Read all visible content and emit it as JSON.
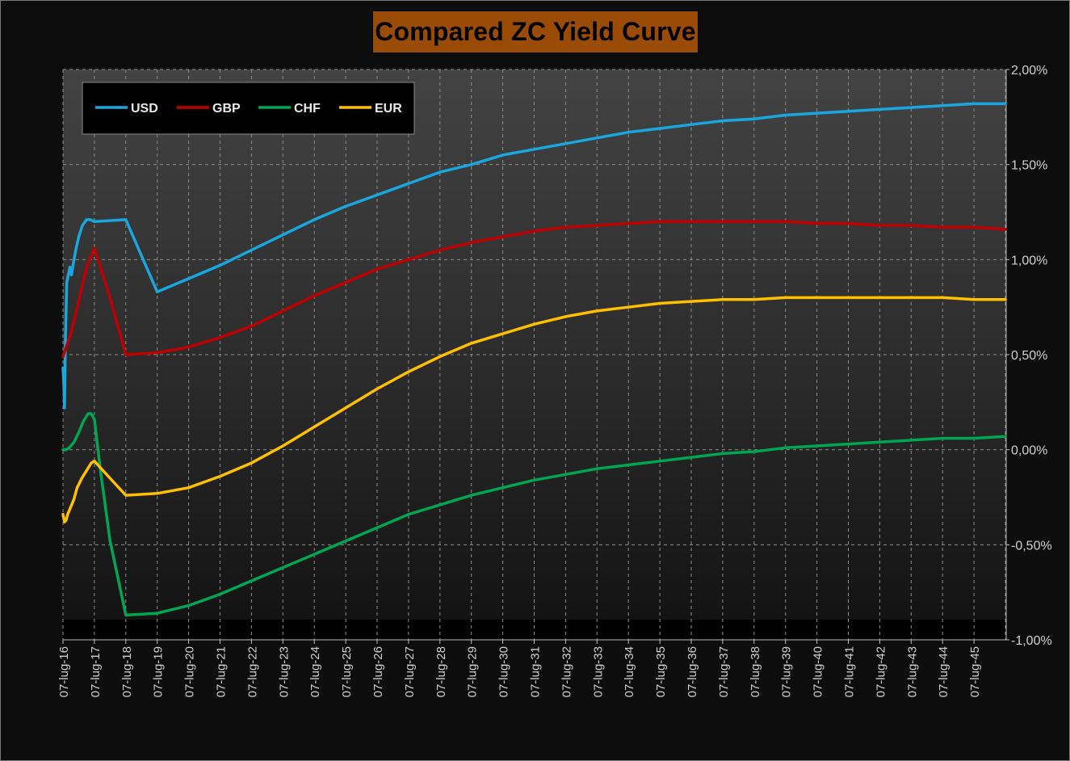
{
  "chart_data": {
    "type": "line",
    "title": "Compared ZC Yield Curve",
    "xlabel": "",
    "ylabel": "",
    "ylim": [
      -0.01,
      0.02
    ],
    "y_ticks": [
      "2,00%",
      "1,50%",
      "1,00%",
      "0,50%",
      "0,00%",
      "-0,50%",
      "-1,00%"
    ],
    "y_tick_values": [
      0.02,
      0.015,
      0.01,
      0.005,
      0.0,
      -0.005,
      -0.01
    ],
    "x_ticks": [
      "07-lug-16",
      "07-lug-17",
      "07-lug-18",
      "07-lug-19",
      "07-lug-20",
      "07-lug-21",
      "07-lug-22",
      "07-lug-23",
      "07-lug-24",
      "07-lug-25",
      "07-lug-26",
      "07-lug-27",
      "07-lug-28",
      "07-lug-29",
      "07-lug-30",
      "07-lug-31",
      "07-lug-32",
      "07-lug-33",
      "07-lug-34",
      "07-lug-35",
      "07-lug-36",
      "07-lug-37",
      "07-lug-38",
      "07-lug-39",
      "07-lug-40",
      "07-lug-41",
      "07-lug-42",
      "07-lug-43",
      "07-lug-44",
      "07-lug-45"
    ],
    "x_unit": "years from 07-lug-16",
    "xlim": [
      0,
      30
    ],
    "grid": true,
    "legend_position": "top-left",
    "series": [
      {
        "name": "USD",
        "color": "#1aa7e0",
        "points": [
          [
            0.0,
            0.0043
          ],
          [
            0.02,
            0.0037
          ],
          [
            0.05,
            0.0022
          ],
          [
            0.08,
            0.006
          ],
          [
            0.12,
            0.0088
          ],
          [
            0.17,
            0.0092
          ],
          [
            0.22,
            0.0096
          ],
          [
            0.27,
            0.0092
          ],
          [
            0.33,
            0.0098
          ],
          [
            0.42,
            0.0106
          ],
          [
            0.5,
            0.0112
          ],
          [
            0.62,
            0.0118
          ],
          [
            0.75,
            0.0121
          ],
          [
            0.87,
            0.0121
          ],
          [
            1.0,
            0.012
          ],
          [
            2.0,
            0.0121
          ],
          [
            3.0,
            0.0083
          ],
          [
            4.0,
            0.009
          ],
          [
            5.0,
            0.0097
          ],
          [
            6.0,
            0.0105
          ],
          [
            7.0,
            0.0113
          ],
          [
            8.0,
            0.0121
          ],
          [
            9.0,
            0.0128
          ],
          [
            10.0,
            0.0134
          ],
          [
            11.0,
            0.014
          ],
          [
            12.0,
            0.0146
          ],
          [
            13.0,
            0.015
          ],
          [
            14.0,
            0.0155
          ],
          [
            15.0,
            0.0158
          ],
          [
            16.0,
            0.0161
          ],
          [
            17.0,
            0.0164
          ],
          [
            18.0,
            0.0167
          ],
          [
            19.0,
            0.0169
          ],
          [
            20.0,
            0.0171
          ],
          [
            21.0,
            0.0173
          ],
          [
            22.0,
            0.0174
          ],
          [
            23.0,
            0.0176
          ],
          [
            24.0,
            0.0177
          ],
          [
            25.0,
            0.0178
          ],
          [
            26.0,
            0.0179
          ],
          [
            27.0,
            0.018
          ],
          [
            28.0,
            0.0181
          ],
          [
            29.0,
            0.0182
          ],
          [
            30.0,
            0.0182
          ]
        ]
      },
      {
        "name": "GBP",
        "color": "#c00000",
        "points": [
          [
            0.0,
            0.0049
          ],
          [
            0.25,
            0.0061
          ],
          [
            0.5,
            0.0078
          ],
          [
            0.75,
            0.0096
          ],
          [
            1.0,
            0.0106
          ],
          [
            1.5,
            0.008
          ],
          [
            2.0,
            0.005
          ],
          [
            3.0,
            0.0051
          ],
          [
            4.0,
            0.0054
          ],
          [
            5.0,
            0.0059
          ],
          [
            6.0,
            0.0065
          ],
          [
            7.0,
            0.0073
          ],
          [
            8.0,
            0.0081
          ],
          [
            9.0,
            0.0088
          ],
          [
            10.0,
            0.0095
          ],
          [
            11.0,
            0.01
          ],
          [
            12.0,
            0.0105
          ],
          [
            13.0,
            0.0109
          ],
          [
            14.0,
            0.0112
          ],
          [
            15.0,
            0.0115
          ],
          [
            16.0,
            0.0117
          ],
          [
            17.0,
            0.0118
          ],
          [
            18.0,
            0.0119
          ],
          [
            19.0,
            0.012
          ],
          [
            20.0,
            0.012
          ],
          [
            21.0,
            0.012
          ],
          [
            22.0,
            0.012
          ],
          [
            23.0,
            0.012
          ],
          [
            24.0,
            0.0119
          ],
          [
            25.0,
            0.0119
          ],
          [
            26.0,
            0.0118
          ],
          [
            27.0,
            0.0118
          ],
          [
            28.0,
            0.0117
          ],
          [
            29.0,
            0.0117
          ],
          [
            30.0,
            0.0116
          ]
        ]
      },
      {
        "name": "CHF",
        "color": "#00a651",
        "points": [
          [
            0.0,
            0.0
          ],
          [
            0.1,
            0.0
          ],
          [
            0.2,
            0.0001
          ],
          [
            0.35,
            0.0004
          ],
          [
            0.5,
            0.0009
          ],
          [
            0.65,
            0.0015
          ],
          [
            0.8,
            0.0019
          ],
          [
            0.9,
            0.0019
          ],
          [
            1.0,
            0.0016
          ],
          [
            1.2,
            -0.0012
          ],
          [
            1.5,
            -0.0048
          ],
          [
            2.0,
            -0.0087
          ],
          [
            3.0,
            -0.0086
          ],
          [
            4.0,
            -0.0082
          ],
          [
            5.0,
            -0.0076
          ],
          [
            6.0,
            -0.0069
          ],
          [
            7.0,
            -0.0062
          ],
          [
            8.0,
            -0.0055
          ],
          [
            9.0,
            -0.0048
          ],
          [
            10.0,
            -0.0041
          ],
          [
            11.0,
            -0.0034
          ],
          [
            12.0,
            -0.0029
          ],
          [
            13.0,
            -0.0024
          ],
          [
            14.0,
            -0.002
          ],
          [
            15.0,
            -0.0016
          ],
          [
            16.0,
            -0.0013
          ],
          [
            17.0,
            -0.001
          ],
          [
            18.0,
            -0.0008
          ],
          [
            19.0,
            -0.0006
          ],
          [
            20.0,
            -0.0004
          ],
          [
            21.0,
            -0.0002
          ],
          [
            22.0,
            -0.0001
          ],
          [
            23.0,
            0.0001
          ],
          [
            24.0,
            0.0002
          ],
          [
            25.0,
            0.0003
          ],
          [
            26.0,
            0.0004
          ],
          [
            27.0,
            0.0005
          ],
          [
            28.0,
            0.0006
          ],
          [
            29.0,
            0.0006
          ],
          [
            30.0,
            0.0007
          ]
        ]
      },
      {
        "name": "EUR",
        "color": "#ffc000",
        "points": [
          [
            0.0,
            -0.0034
          ],
          [
            0.05,
            -0.0038
          ],
          [
            0.1,
            -0.0037
          ],
          [
            0.15,
            -0.0034
          ],
          [
            0.25,
            -0.003
          ],
          [
            0.35,
            -0.0026
          ],
          [
            0.45,
            -0.002
          ],
          [
            0.6,
            -0.0015
          ],
          [
            0.75,
            -0.0011
          ],
          [
            0.9,
            -0.0007
          ],
          [
            1.0,
            -0.0006
          ],
          [
            1.5,
            -0.0015
          ],
          [
            2.0,
            -0.0024
          ],
          [
            3.0,
            -0.0023
          ],
          [
            4.0,
            -0.002
          ],
          [
            5.0,
            -0.0014
          ],
          [
            6.0,
            -0.0007
          ],
          [
            7.0,
            0.0002
          ],
          [
            8.0,
            0.0012
          ],
          [
            9.0,
            0.0022
          ],
          [
            10.0,
            0.0032
          ],
          [
            11.0,
            0.0041
          ],
          [
            12.0,
            0.0049
          ],
          [
            13.0,
            0.0056
          ],
          [
            14.0,
            0.0061
          ],
          [
            15.0,
            0.0066
          ],
          [
            16.0,
            0.007
          ],
          [
            17.0,
            0.0073
          ],
          [
            18.0,
            0.0075
          ],
          [
            19.0,
            0.0077
          ],
          [
            20.0,
            0.0078
          ],
          [
            21.0,
            0.0079
          ],
          [
            22.0,
            0.0079
          ],
          [
            23.0,
            0.008
          ],
          [
            24.0,
            0.008
          ],
          [
            25.0,
            0.008
          ],
          [
            26.0,
            0.008
          ],
          [
            27.0,
            0.008
          ],
          [
            28.0,
            0.008
          ],
          [
            29.0,
            0.0079
          ],
          [
            30.0,
            0.0079
          ]
        ]
      }
    ]
  }
}
